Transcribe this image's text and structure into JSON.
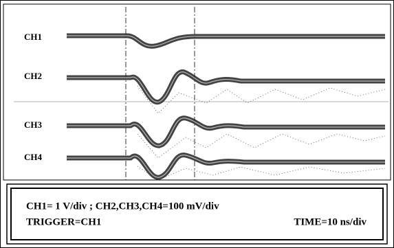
{
  "channels": [
    "CH1",
    "CH2",
    "CH3",
    "CH4"
  ],
  "settings": {
    "scale": "CH1= 1 V/div ; CH2,CH3,CH4=100 mV/div",
    "trigger": "TRIGGER=CH1",
    "time": "TIME=10 ns/div"
  }
}
